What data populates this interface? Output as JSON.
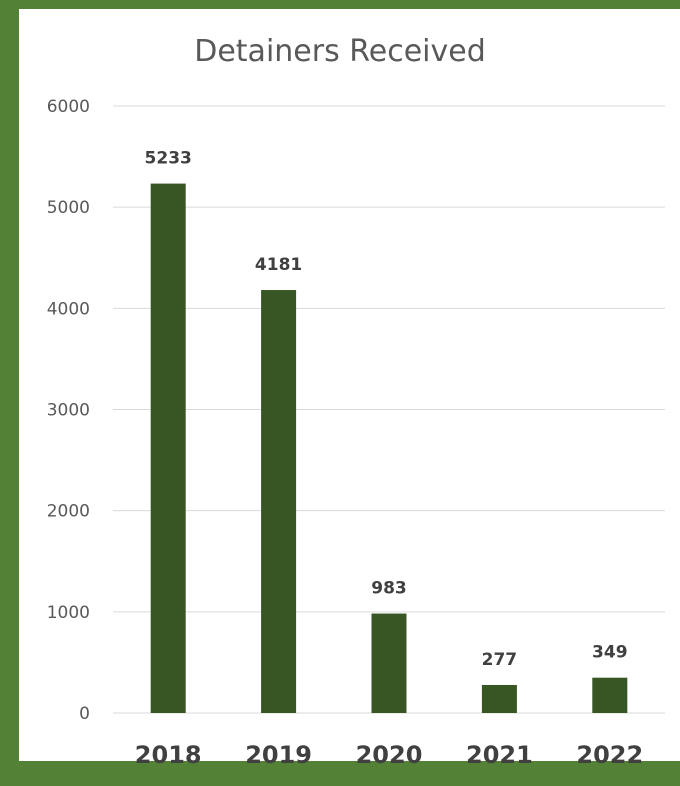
{
  "chart_data": {
    "type": "bar",
    "title": "Detainers Received",
    "xlabel": "",
    "ylabel": "",
    "categories": [
      "2018",
      "2019",
      "2020",
      "2021",
      "2022"
    ],
    "values": [
      5233,
      4181,
      983,
      277,
      349
    ],
    "data_labels": [
      "5233",
      "4181",
      "983",
      "277",
      "349"
    ],
    "ylim": [
      0,
      6000
    ],
    "yticks": [
      "0",
      "1000",
      "2000",
      "3000",
      "4000",
      "5000",
      "6000"
    ],
    "grid": true,
    "legend": "none",
    "colors": {
      "bar": "#375623",
      "grid": "#d9d9d9",
      "frame": "#538135"
    }
  }
}
